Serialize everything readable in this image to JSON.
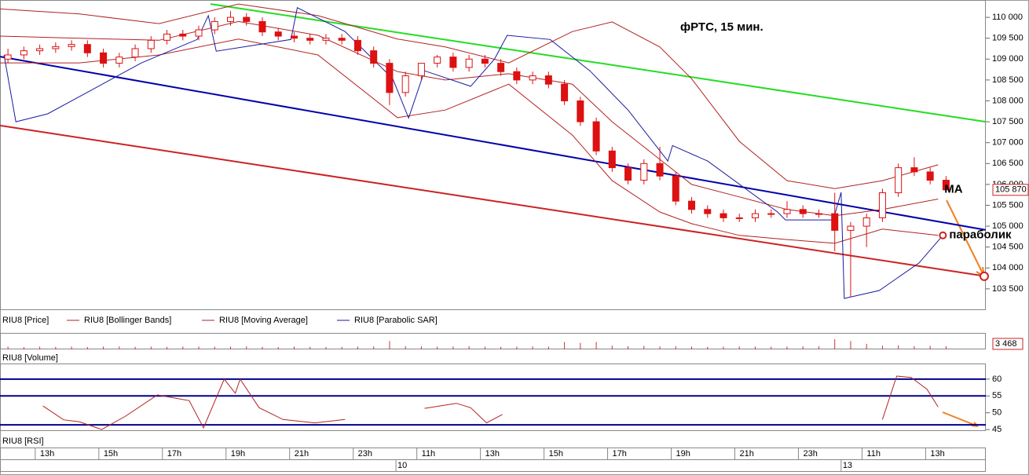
{
  "chart_data": [
    {
      "type": "candlestick",
      "title": "фРТС, 15 мин.",
      "name": "RIU8 [Price]",
      "color": "#dd1111",
      "xlim": [
        0,
        62
      ],
      "ylim": [
        102990,
        110415
      ],
      "yticks": [
        {
          "value": 103500,
          "label": "103 500"
        },
        {
          "value": 104000,
          "label": "104 000"
        },
        {
          "value": 104500,
          "label": "104 500"
        },
        {
          "value": 105000,
          "label": "105 000"
        },
        {
          "value": 105500,
          "label": "105 500"
        },
        {
          "value": 106000,
          "label": "106 000"
        },
        {
          "value": 106500,
          "label": "106 500"
        },
        {
          "value": 107000,
          "label": "107 000"
        },
        {
          "value": 107500,
          "label": "107 500"
        },
        {
          "value": 108000,
          "label": "108 000"
        },
        {
          "value": 108500,
          "label": "108 500"
        },
        {
          "value": 109000,
          "label": "109 000"
        },
        {
          "value": 109500,
          "label": "109 500"
        },
        {
          "value": 110000,
          "label": "110 000"
        }
      ],
      "open": [
        109000,
        109100,
        109200,
        109250,
        109300,
        109350,
        109150,
        108900,
        109050,
        109250,
        109450,
        109600,
        109550,
        109700,
        109900,
        110000,
        109900,
        109650,
        109550,
        109500,
        109450,
        109500,
        109450,
        109200,
        108900,
        108200,
        108600,
        108900,
        109050,
        108800,
        109000,
        108900,
        108700,
        108500,
        108600,
        108400,
        108000,
        107500,
        106800,
        106400,
        106100,
        106500,
        106200,
        105600,
        105400,
        105300,
        105200,
        105200,
        105300,
        105300,
        105400,
        105300,
        105300,
        104900,
        105000,
        105200,
        105800,
        106400,
        106300,
        106100
      ],
      "high": [
        109250,
        109300,
        109350,
        109400,
        109450,
        109450,
        109250,
        109150,
        109350,
        109550,
        109700,
        109700,
        109800,
        110000,
        110150,
        110100,
        110000,
        109750,
        109650,
        109600,
        109600,
        109600,
        109550,
        109300,
        109000,
        108700,
        108900,
        109100,
        109150,
        109100,
        109100,
        109000,
        108800,
        108700,
        108700,
        108500,
        108100,
        107600,
        106900,
        106500,
        106600,
        106900,
        106300,
        105700,
        105500,
        105400,
        105300,
        105400,
        105400,
        105600,
        105500,
        105400,
        105800,
        105100,
        105300,
        105900,
        106500,
        106650,
        106400,
        106200
      ],
      "low": [
        108900,
        109000,
        109100,
        109150,
        109200,
        109050,
        108800,
        108800,
        108950,
        109150,
        109350,
        109450,
        109450,
        109600,
        109800,
        109800,
        109550,
        109450,
        109400,
        109350,
        109350,
        109350,
        109100,
        108800,
        107900,
        108100,
        108500,
        108800,
        108700,
        108700,
        108800,
        108600,
        108400,
        108400,
        108300,
        107900,
        107400,
        106700,
        106300,
        106000,
        106000,
        106100,
        105500,
        105300,
        105200,
        105100,
        105100,
        105100,
        105200,
        105200,
        105200,
        105200,
        104400,
        103300,
        104500,
        105100,
        105700,
        106200,
        106000,
        105800
      ],
      "close": [
        109100,
        109200,
        109250,
        109300,
        109350,
        109150,
        108900,
        109050,
        109250,
        109450,
        109600,
        109550,
        109700,
        109900,
        110000,
        109900,
        109650,
        109550,
        109500,
        109450,
        109500,
        109450,
        109200,
        108900,
        108200,
        108600,
        108900,
        109050,
        108800,
        109000,
        108900,
        108700,
        108500,
        108600,
        108400,
        108000,
        107500,
        106800,
        106400,
        106100,
        106500,
        106200,
        105600,
        105400,
        105300,
        105200,
        105200,
        105300,
        105300,
        105400,
        105300,
        105300,
        104900,
        105000,
        105200,
        105800,
        106400,
        106300,
        106100,
        105870
      ],
      "last_price_label": "105 870",
      "overlays": [
        {
          "name": "RIU8 [Bollinger Bands]",
          "color": "#b22222",
          "x": [
            0,
            5,
            10,
            15,
            20,
            25,
            28,
            32,
            36,
            38.5,
            41.5,
            43.5,
            46.5,
            49.5,
            52.5,
            55.5,
            59
          ],
          "upper": [
            110200,
            110080,
            109850,
            110320,
            110040,
            109480,
            109290,
            108910,
            109660,
            109890,
            109290,
            108530,
            107030,
            106090,
            105900,
            106090,
            106470
          ],
          "lower": [
            108910,
            108910,
            109100,
            109480,
            109100,
            107600,
            107780,
            108400,
            107180,
            106090,
            105340,
            105060,
            104780,
            104680,
            104590,
            104930,
            104780
          ]
        },
        {
          "name": "RIU8 [Moving Average]",
          "color": "#b22222",
          "x": [
            0,
            5,
            10,
            15,
            20,
            25,
            28,
            32,
            36,
            38.5,
            41.5,
            43.5,
            46.5,
            49.5,
            52.5,
            55.5,
            59
          ],
          "values": [
            109550,
            109500,
            109450,
            109900,
            109570,
            108700,
            108500,
            108650,
            108400,
            107500,
            106600,
            106000,
            105700,
            105400,
            105250,
            105400,
            105650
          ]
        },
        {
          "name": "RIU8 [Parabolic SAR]",
          "color": "#1a1aa0",
          "x": [
            0.25,
            1,
            3,
            8.9,
            12.4,
            13.1,
            13.6,
            18.3,
            18.7,
            21.7,
            24.7,
            25.7,
            26.7,
            29.6,
            31.1,
            31.9,
            34.6,
            37.1,
            39.5,
            42,
            42.3,
            44.5,
            48.9,
            49.4,
            52.4,
            52.9,
            53.1,
            55.3,
            57.8,
            59.3
          ],
          "values": [
            109100,
            107500,
            107690,
            108910,
            109470,
            110040,
            109190,
            109470,
            110230,
            109660,
            108530,
            107590,
            108720,
            108350,
            109000,
            109570,
            109470,
            108720,
            107780,
            106560,
            106930,
            106560,
            105340,
            105150,
            105150,
            105810,
            103270,
            103460,
            104120,
            104780
          ]
        }
      ],
      "trendlines": [
        {
          "color": "#22dd22",
          "x": [
            13.24,
            62
          ],
          "values": [
            110320,
            107500
          ]
        },
        {
          "color": "#0000aa",
          "x": [
            0,
            62
          ],
          "values": [
            109060,
            104910
          ]
        },
        {
          "color": "#cc2222",
          "x": [
            0,
            62
          ],
          "values": [
            107410,
            103800
          ]
        }
      ],
      "annotations": [
        "МА",
        "параболик"
      ]
    },
    {
      "type": "bar",
      "name": "RIU8 [Volume]",
      "color": "#cc3333",
      "ylim": [
        0,
        17000
      ],
      "values": [
        3000,
        2500,
        3000,
        2800,
        3000,
        2600,
        3000,
        3200,
        2800,
        3000,
        2700,
        3000,
        3100,
        2900,
        3000,
        3200,
        2800,
        2600,
        3000,
        2900,
        2700,
        2800,
        3000,
        3200,
        9000,
        3500,
        3300,
        3000,
        3200,
        3400,
        3000,
        2800,
        3000,
        3200,
        3100,
        8000,
        7000,
        8000,
        4000,
        3500,
        3800,
        3200,
        3500,
        3000,
        2800,
        3000,
        3200,
        3000,
        2900,
        3100,
        3300,
        3500,
        11000,
        9000,
        6000,
        4000,
        4500,
        3500,
        3800,
        3468
      ],
      "value_labels": {
        "59": "3 468"
      }
    },
    {
      "type": "line",
      "name": "RIU8 [RSI]",
      "color": "#b22222",
      "ylim": [
        44.8,
        64.4
      ],
      "yticks": [
        45,
        50,
        55,
        60
      ],
      "levels": [
        60,
        55,
        46.4
      ],
      "level_color": "#00008b",
      "x": [
        2.7,
        4,
        5,
        6.4,
        7.9,
        9.9,
        11.9,
        12.8,
        14.1,
        14.8,
        15.1,
        16.3,
        17.8,
        19.8,
        21.7,
        23,
        26.7,
        28.7,
        29.6,
        30.6,
        31.6,
        40,
        55.5,
        56.4,
        57.3,
        58.3,
        59
      ],
      "values": [
        52,
        47.9,
        47.3,
        45,
        49,
        55.3,
        53.6,
        45.5,
        60,
        55.8,
        60,
        51.5,
        48,
        47,
        48,
        null,
        51.3,
        52.8,
        51.5,
        47,
        49.5,
        null,
        48,
        60.9,
        60.5,
        57,
        51.7
      ],
      "xticks": [
        {
          "value": 3.5,
          "label": "13h"
        },
        {
          "value": 7.5,
          "label": "15h"
        },
        {
          "value": 11.5,
          "label": "17h"
        },
        {
          "value": 15.5,
          "label": "19h"
        },
        {
          "value": 19.5,
          "label": "21h"
        },
        {
          "value": 23.5,
          "label": "23h"
        },
        {
          "value": 27.5,
          "label": "11h"
        },
        {
          "value": 31.5,
          "label": "13h"
        },
        {
          "value": 35.5,
          "label": "15h"
        },
        {
          "value": 39.5,
          "label": "17h"
        },
        {
          "value": 43.5,
          "label": "19h"
        },
        {
          "value": 47.5,
          "label": "21h"
        },
        {
          "value": 51.5,
          "label": "23h"
        },
        {
          "value": 55.5,
          "label": "11h"
        },
        {
          "value": 59.5,
          "label": "13h"
        }
      ],
      "dateticks": [
        {
          "value": 25,
          "label": "10"
        },
        {
          "value": 53,
          "label": "13"
        }
      ]
    }
  ]
}
